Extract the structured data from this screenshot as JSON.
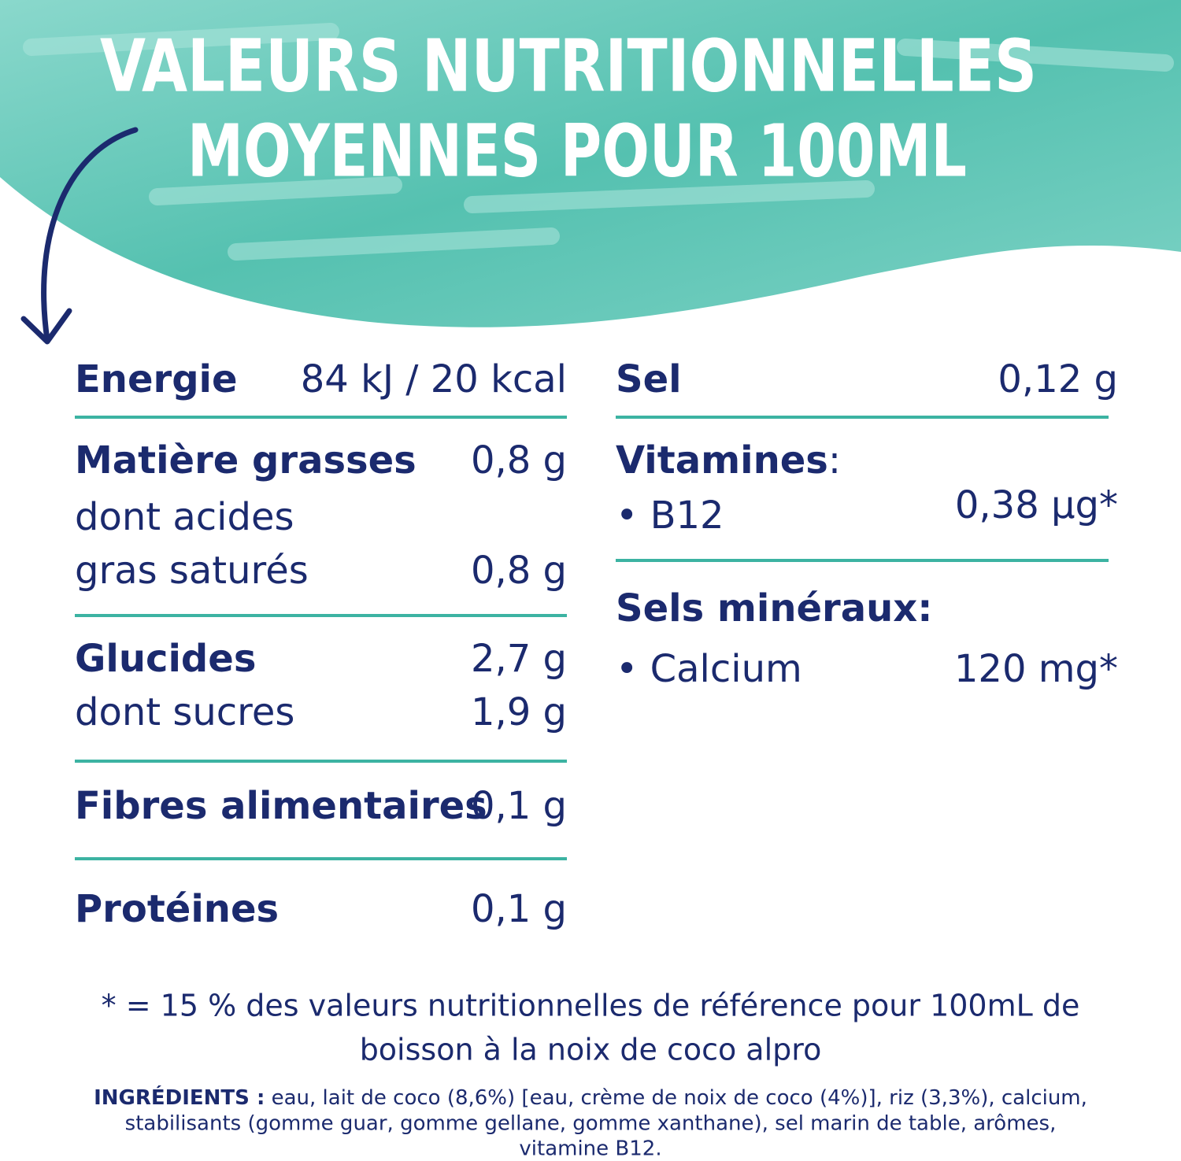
{
  "header": {
    "title": [
      "VALEURS NUTRITIONNELLES",
      "MOYENNES POUR 100ML"
    ]
  },
  "left": [
    [
      {
        "label": "Energie",
        "value": "84 kJ / 20 kcal"
      }
    ],
    [
      {
        "label": "Matière grasses",
        "value": "0,8 g"
      },
      {
        "label": "dont acides"
      },
      {
        "label": "gras saturés",
        "value": "0,8 g"
      }
    ],
    [
      {
        "label": "Glucides",
        "value": "2,7 g"
      },
      {
        "label": "dont sucres",
        "value": "1,9 g"
      }
    ],
    [
      {
        "label": "Fibres alimentaires",
        "value": "0,1 g"
      }
    ],
    [
      {
        "label": "Protéines",
        "value": "0,1 g"
      }
    ]
  ],
  "right": [
    [
      {
        "label": "Sel",
        "value": "0,12 g"
      }
    ],
    [
      {
        "label": "Vitamines",
        "suffix": ":"
      },
      {
        "label": "• B12",
        "value": "0,38 µg*"
      }
    ],
    [
      {
        "label": "Sels minéraux:"
      },
      {
        "label": "• Calcium",
        "value": "120 mg*"
      }
    ]
  ],
  "footnote": [
    "* = 15 % des valeurs nutritionnelles de référence pour 100mL de",
    "boisson à la noix de coco alpro"
  ],
  "ingredients": {
    "label": "INGRÉDIENTS :",
    "lines": [
      "eau, lait de coco (8,6%) [eau, crème de noix de coco (4%)], riz (3,3%), calcium,",
      "stabilisants (gomme guar, gomme gellane, gomme xanthane), sel marin de table, arômes,",
      "vitamine B12."
    ]
  }
}
